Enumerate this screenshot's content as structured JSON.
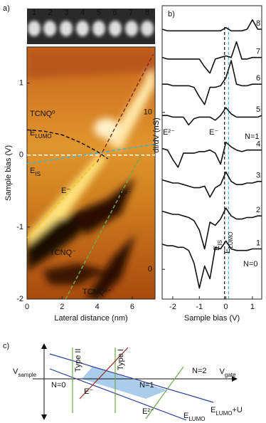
{
  "chart_data": [
    {
      "type": "heatmap",
      "panel_label": "a)",
      "xlabel": "Lateral distance (nm)",
      "ylabel": "Sample bias (V)",
      "xlim": [
        0,
        7.3
      ],
      "ylim": [
        -2,
        1.5
      ],
      "xticks": [
        0,
        2,
        4,
        6
      ],
      "yticks": [
        -2,
        -1,
        0,
        1
      ],
      "strip_labels": [
        "1",
        "2",
        "3",
        "4",
        "5",
        "6",
        "7",
        "8"
      ],
      "lines": [
        {
          "color": "#ffffff",
          "x": [
            0,
            7.3
          ],
          "y": [
            0,
            0
          ]
        },
        {
          "color": "#111111",
          "x": [
            0,
            1,
            2,
            3,
            4,
            4.6
          ],
          "y": [
            0.35,
            0.33,
            0.28,
            0.18,
            0.05,
            -0.05
          ]
        },
        {
          "color": "#3fb6c8",
          "x": [
            0,
            7.3
          ],
          "y": [
            -0.12,
            0.15
          ]
        },
        {
          "color": "#f2c21b",
          "x": [
            0,
            4.3
          ],
          "y": [
            -1.15,
            0
          ]
        },
        {
          "color": "#6fa84a",
          "x": [
            2.2,
            6.5
          ],
          "y": [
            -2,
            0
          ]
        },
        {
          "color": "#8b2a1a",
          "x": [
            4,
            7.2
          ],
          "y": [
            -0.1,
            1.4
          ]
        }
      ],
      "annotations": [
        {
          "text": "TCNQ⁰"
        },
        {
          "text": "E",
          "sub": "LUMO"
        },
        {
          "text": "E",
          "sub": "IS"
        },
        {
          "text": "E⁻"
        },
        {
          "text": "E²⁻"
        },
        {
          "text": "TCNQ⁻"
        },
        {
          "text": "TCNQ²⁻"
        }
      ]
    },
    {
      "type": "line",
      "panel_label": "b)",
      "xlabel": "Sample bias (V)",
      "ylabel": "dI/dV (nS)",
      "xlim": [
        -2.4,
        1.35
      ],
      "ylim": [
        -1.9,
        16.8
      ],
      "xticks": [
        -2,
        -1,
        0,
        1
      ],
      "yticks": [
        0,
        10
      ],
      "x": [
        -2.4,
        -2.2,
        -2.0,
        -1.8,
        -1.6,
        -1.4,
        -1.2,
        -1.0,
        -0.8,
        -0.6,
        -0.4,
        -0.2,
        0,
        0.2,
        0.4,
        0.6,
        0.8,
        1.0,
        1.2,
        1.35
      ],
      "series": [
        {
          "name": "1",
          "color": "#111111",
          "values": [
            1.6,
            1.5,
            1.5,
            1.4,
            1.4,
            1.2,
            0.4,
            -1.2,
            0.2,
            -0.6,
            1.4,
            1.3,
            1.8,
            1.3,
            1.2,
            1.2,
            1.2,
            1.3,
            1.3,
            1.3
          ]
        },
        {
          "name": "2",
          "color": "#111111",
          "values": [
            3.7,
            3.6,
            3.5,
            3.5,
            3.4,
            3.3,
            3.1,
            2.5,
            1.3,
            3.0,
            2.8,
            3.2,
            3.9,
            3.4,
            3.2,
            3.2,
            3.3,
            3.3,
            3.4,
            3.4
          ]
        },
        {
          "name": "3",
          "color": "#111111",
          "values": [
            5.7,
            5.6,
            5.5,
            5.5,
            5.4,
            5.3,
            5.2,
            5.2,
            5.3,
            4.6,
            5.2,
            5.4,
            6.2,
            5.6,
            5.4,
            5.4,
            5.5,
            5.5,
            5.6,
            5.6
          ]
        },
        {
          "name": "4",
          "color": "#111111",
          "values": [
            7.7,
            7.6,
            7.0,
            6.5,
            7.4,
            7.4,
            7.4,
            7.5,
            7.5,
            7.6,
            7.4,
            6.7,
            8.1,
            7.8,
            7.6,
            7.5,
            7.6,
            7.6,
            7.6,
            7.6
          ]
        },
        {
          "name": "5",
          "color": "#111111",
          "values": [
            9.8,
            9.8,
            9.7,
            9.7,
            9.7,
            9.2,
            9.6,
            9.7,
            9.7,
            9.7,
            9.5,
            9.8,
            10.3,
            9.9,
            9.7,
            9.7,
            9.7,
            9.7,
            9.7,
            9.8
          ]
        },
        {
          "name": "6",
          "color": "#111111",
          "values": [
            11.8,
            11.8,
            11.7,
            11.7,
            11.7,
            11.7,
            11.6,
            11.0,
            10.5,
            11.6,
            11.6,
            11.7,
            12.2,
            13.3,
            11.8,
            11.7,
            11.7,
            11.8,
            11.8,
            11.8
          ]
        },
        {
          "name": "7",
          "color": "#111111",
          "values": [
            13.5,
            13.4,
            13.4,
            13.4,
            13.4,
            13.4,
            13.4,
            13.4,
            12.9,
            12.5,
            13.4,
            13.5,
            13.6,
            13.5,
            14.5,
            13.4,
            13.4,
            13.5,
            13.5,
            13.5
          ]
        },
        {
          "name": "8",
          "color": "#111111",
          "values": [
            15.3,
            15.2,
            15.2,
            15.2,
            15.2,
            15.2,
            15.2,
            15.2,
            15.2,
            15.2,
            15.2,
            15.2,
            15.4,
            15.2,
            15.2,
            15.2,
            15.3,
            15.9,
            15.3,
            15.3
          ]
        }
      ],
      "vlines": [
        {
          "x": -0.05,
          "color": "#111111"
        },
        {
          "x": 0.1,
          "color": "#3fb6c8"
        }
      ],
      "annotations": [
        {
          "text": "N=0"
        },
        {
          "text": "N=1"
        },
        {
          "text": "E²⁻"
        },
        {
          "text": "E⁻"
        },
        {
          "text": "E",
          "sub": "IS"
        },
        {
          "text": "E",
          "sub": "LUMO"
        }
      ]
    }
  ],
  "diagram": {
    "panel_label": "c)",
    "v_sample": {
      "text": "V",
      "sub": "sample"
    },
    "v_gate": {
      "text": "V",
      "sub": "gate"
    },
    "n0": "N=0",
    "n1": "N=1",
    "n2": "N=2",
    "e_minus": "E⁻",
    "e_2minus": "E²⁻",
    "e_lumo": {
      "text": "E",
      "sub": "LUMO"
    },
    "e_lumo_u": {
      "text": "E",
      "sub": "LUMO",
      "after": "+U"
    },
    "type2": "Type II",
    "type1": "Type I"
  }
}
